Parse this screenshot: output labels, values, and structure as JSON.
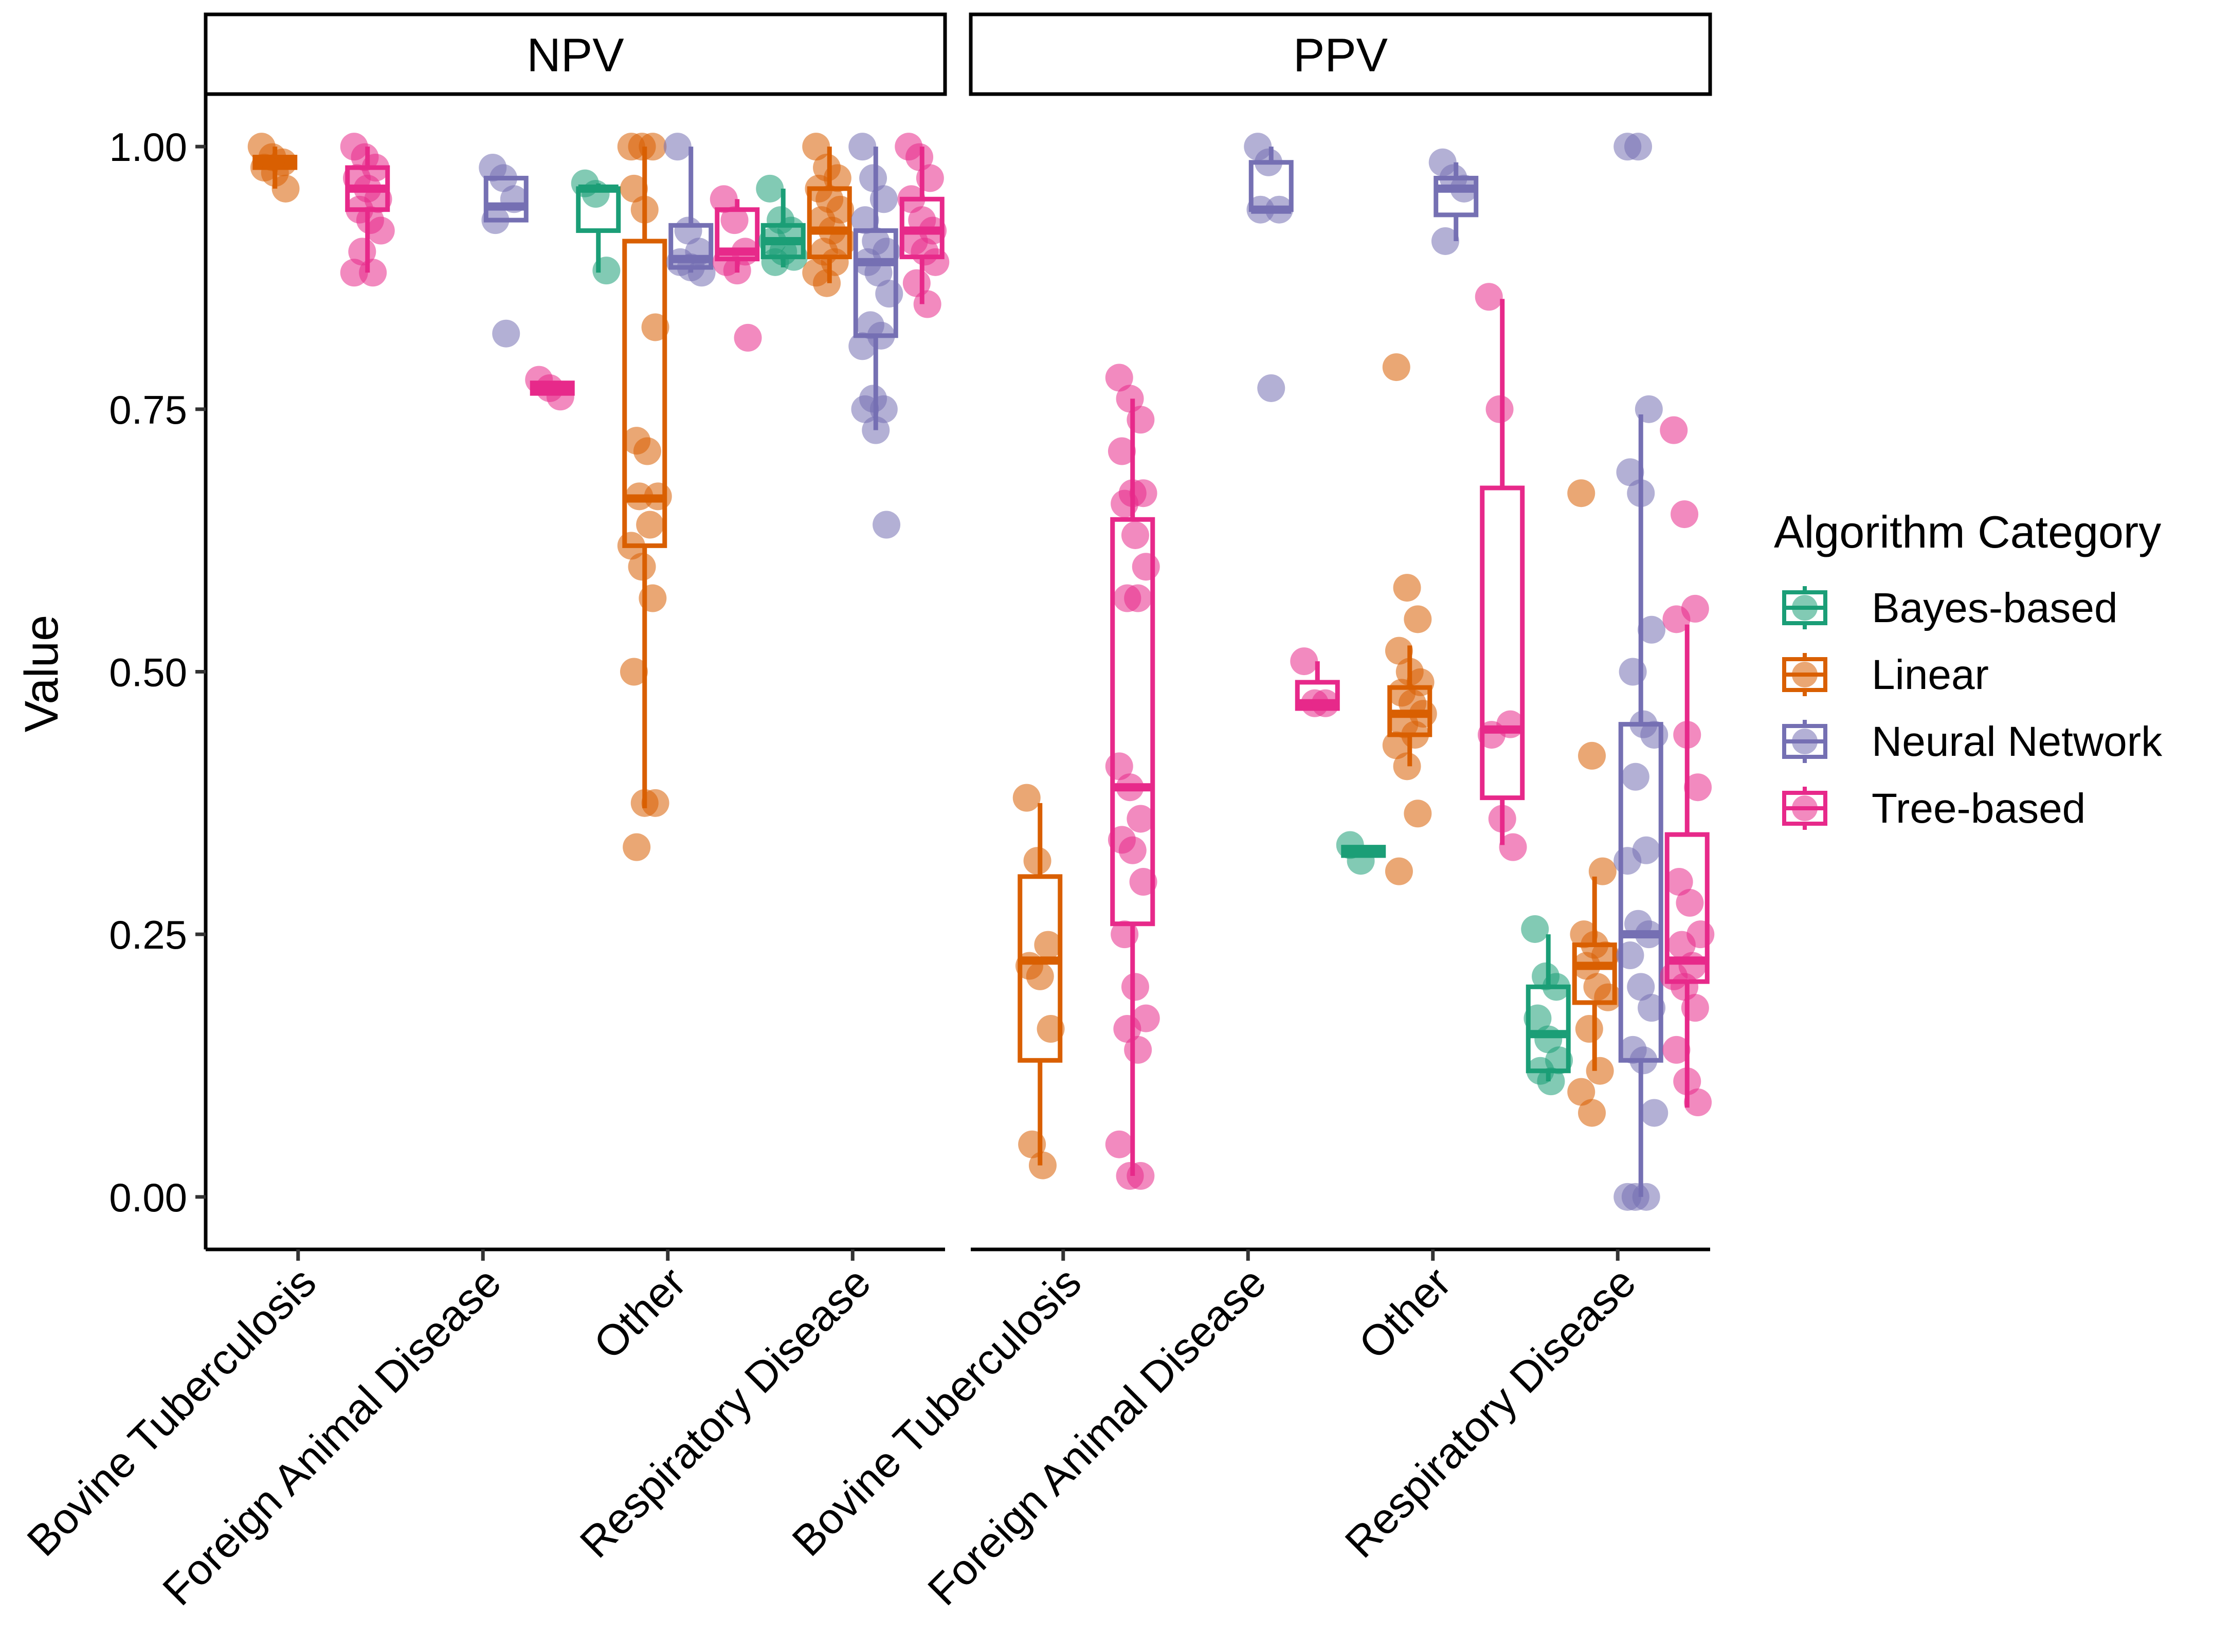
{
  "chart_data": {
    "type": "boxplot",
    "ylabel": "Value",
    "ylim": [
      -0.05,
      1.05
    ],
    "y_ticks": [
      0.0,
      0.25,
      0.5,
      0.75,
      1.0
    ],
    "y_tick_labels": [
      "0.00",
      "0.25",
      "0.50",
      "0.75",
      "1.00"
    ],
    "grid": false,
    "categories": [
      "Bovine Tuberculosis",
      "Foreign Animal Disease",
      "Other",
      "Respiratory Disease"
    ],
    "legend": {
      "title": "Algorithm Category",
      "position": "right",
      "entries": [
        {
          "name": "Bayes-based",
          "color": "#1B9E77"
        },
        {
          "name": "Linear",
          "color": "#D95F02"
        },
        {
          "name": "Neural Network",
          "color": "#7570B3"
        },
        {
          "name": "Tree-based",
          "color": "#E7298A"
        }
      ]
    },
    "panels": [
      {
        "name": "NPV",
        "groups": [
          {
            "category": "Bovine Tuberculosis",
            "series": "Linear",
            "q1": 0.98,
            "median": 0.985,
            "q3": 0.99,
            "wmin": 0.96,
            "wmax": 1.0,
            "points": [
              1.0,
              0.99,
              0.985,
              0.98,
              0.975,
              0.96
            ]
          },
          {
            "category": "Bovine Tuberculosis",
            "series": "Tree-based",
            "q1": 0.94,
            "median": 0.96,
            "q3": 0.98,
            "wmin": 0.88,
            "wmax": 1.0,
            "points": [
              1.0,
              0.99,
              0.98,
              0.97,
              0.96,
              0.95,
              0.94,
              0.93,
              0.92,
              0.9,
              0.88,
              0.88
            ]
          },
          {
            "category": "Foreign Animal Disease",
            "series": "Neural Network",
            "q1": 0.93,
            "median": 0.943,
            "q3": 0.97,
            "wmin": 0.93,
            "wmax": 0.97,
            "points": [
              0.98,
              0.97,
              0.95,
              0.93,
              0.822
            ]
          },
          {
            "category": "Foreign Animal Disease",
            "series": "Tree-based",
            "q1": 0.765,
            "median": 0.77,
            "q3": 0.775,
            "wmin": 0.765,
            "wmax": 0.775,
            "points": [
              0.778,
              0.77,
              0.762
            ]
          },
          {
            "category": "Other",
            "series": "Bayes-based",
            "q1": 0.92,
            "median": 0.96,
            "q3": 0.96,
            "wmin": 0.88,
            "wmax": 0.965,
            "points": [
              0.965,
              0.955,
              0.882
            ]
          },
          {
            "category": "Other",
            "series": "Linear",
            "q1": 0.62,
            "median": 0.665,
            "q3": 0.91,
            "wmin": 0.37,
            "wmax": 1.0,
            "points": [
              1.0,
              1.0,
              1.0,
              0.96,
              0.94,
              0.828,
              0.72,
              0.71,
              0.667,
              0.667,
              0.64,
              0.62,
              0.6,
              0.57,
              0.5,
              0.375,
              0.375,
              0.333
            ]
          },
          {
            "category": "Other",
            "series": "Neural Network",
            "q1": 0.885,
            "median": 0.893,
            "q3": 0.925,
            "wmin": 0.88,
            "wmax": 1.0,
            "points": [
              1.0,
              0.92,
              0.9,
              0.89,
              0.885,
              0.88
            ]
          },
          {
            "category": "Other",
            "series": "Tree-based",
            "q1": 0.893,
            "median": 0.9,
            "q3": 0.94,
            "wmin": 0.88,
            "wmax": 0.95,
            "points": [
              0.95,
              0.93,
              0.9,
              0.89,
              0.882,
              0.818
            ]
          },
          {
            "category": "Respiratory Disease",
            "series": "Bayes-based",
            "q1": 0.895,
            "median": 0.91,
            "q3": 0.925,
            "wmin": 0.885,
            "wmax": 0.96,
            "points": [
              0.96,
              0.93,
              0.92,
              0.91,
              0.9,
              0.895,
              0.89
            ]
          },
          {
            "category": "Respiratory Disease",
            "series": "Linear",
            "q1": 0.895,
            "median": 0.92,
            "q3": 0.96,
            "wmin": 0.87,
            "wmax": 1.0,
            "points": [
              1.0,
              0.98,
              0.97,
              0.96,
              0.95,
              0.94,
              0.93,
              0.92,
              0.91,
              0.9,
              0.89,
              0.88,
              0.87
            ]
          },
          {
            "category": "Respiratory Disease",
            "series": "Neural Network",
            "q1": 0.82,
            "median": 0.89,
            "q3": 0.92,
            "wmin": 0.73,
            "wmax": 1.0,
            "points": [
              1.0,
              0.97,
              0.95,
              0.93,
              0.91,
              0.9,
              0.89,
              0.88,
              0.86,
              0.83,
              0.82,
              0.81,
              0.76,
              0.75,
              0.75,
              0.73,
              0.64
            ]
          },
          {
            "category": "Respiratory Disease",
            "series": "Tree-based",
            "q1": 0.895,
            "median": 0.92,
            "q3": 0.95,
            "wmin": 0.85,
            "wmax": 1.0,
            "points": [
              1.0,
              0.99,
              0.97,
              0.95,
              0.93,
              0.92,
              0.91,
              0.9,
              0.89,
              0.87,
              0.85
            ]
          }
        ]
      },
      {
        "name": "PPV",
        "groups": [
          {
            "category": "Bovine Tuberculosis",
            "series": "Linear",
            "q1": 0.13,
            "median": 0.225,
            "q3": 0.305,
            "wmin": 0.03,
            "wmax": 0.375,
            "points": [
              0.38,
              0.32,
              0.24,
              0.22,
              0.21,
              0.16,
              0.05,
              0.03
            ]
          },
          {
            "category": "Bovine Tuberculosis",
            "series": "Tree-based",
            "q1": 0.26,
            "median": 0.39,
            "q3": 0.645,
            "wmin": 0.02,
            "wmax": 0.76,
            "points": [
              0.78,
              0.76,
              0.74,
              0.71,
              0.67,
              0.67,
              0.66,
              0.63,
              0.6,
              0.57,
              0.57,
              0.41,
              0.39,
              0.36,
              0.34,
              0.33,
              0.3,
              0.25,
              0.2,
              0.17,
              0.16,
              0.14,
              0.05,
              0.02,
              0.02
            ]
          },
          {
            "category": "Foreign Animal Disease",
            "series": "Neural Network",
            "q1": 0.94,
            "median": 0.94,
            "q3": 0.985,
            "wmin": 0.94,
            "wmax": 1.0,
            "points": [
              1.0,
              0.985,
              0.94,
              0.94,
              0.77
            ]
          },
          {
            "category": "Foreign Animal Disease",
            "series": "Tree-based",
            "q1": 0.465,
            "median": 0.47,
            "q3": 0.49,
            "wmin": 0.465,
            "wmax": 0.51,
            "points": [
              0.51,
              0.47,
              0.47
            ]
          },
          {
            "category": "Other",
            "series": "Bayes-based",
            "q1": 0.325,
            "median": 0.33,
            "q3": 0.333,
            "wmin": 0.325,
            "wmax": 0.333,
            "points": [
              0.335,
              0.32
            ]
          },
          {
            "category": "Other",
            "series": "Linear",
            "q1": 0.44,
            "median": 0.46,
            "q3": 0.485,
            "wmin": 0.41,
            "wmax": 0.525,
            "points": [
              0.79,
              0.58,
              0.55,
              0.52,
              0.5,
              0.49,
              0.48,
              0.47,
              0.46,
              0.45,
              0.44,
              0.43,
              0.41,
              0.365,
              0.31
            ]
          },
          {
            "category": "Other",
            "series": "Neural Network",
            "q1": 0.935,
            "median": 0.96,
            "q3": 0.97,
            "wmin": 0.91,
            "wmax": 0.985,
            "points": [
              0.985,
              0.97,
              0.96,
              0.91
            ]
          },
          {
            "category": "Other",
            "series": "Tree-based",
            "q1": 0.38,
            "median": 0.445,
            "q3": 0.675,
            "wmin": 0.335,
            "wmax": 0.855,
            "points": [
              0.857,
              0.75,
              0.45,
              0.44,
              0.36,
              0.333
            ]
          },
          {
            "category": "Respiratory Disease",
            "series": "Bayes-based",
            "q1": 0.12,
            "median": 0.155,
            "q3": 0.2,
            "wmin": 0.11,
            "wmax": 0.25,
            "points": [
              0.255,
              0.21,
              0.2,
              0.17,
              0.15,
              0.13,
              0.12,
              0.11
            ]
          },
          {
            "category": "Respiratory Disease",
            "series": "Linear",
            "q1": 0.185,
            "median": 0.22,
            "q3": 0.24,
            "wmin": 0.12,
            "wmax": 0.305,
            "points": [
              0.67,
              0.42,
              0.31,
              0.25,
              0.24,
              0.23,
              0.22,
              0.2,
              0.19,
              0.16,
              0.12,
              0.1,
              0.08
            ]
          },
          {
            "category": "Respiratory Disease",
            "series": "Neural Network",
            "q1": 0.13,
            "median": 0.25,
            "q3": 0.45,
            "wmin": 0.0,
            "wmax": 0.745,
            "points": [
              1.0,
              1.0,
              0.75,
              0.69,
              0.67,
              0.54,
              0.5,
              0.45,
              0.44,
              0.4,
              0.33,
              0.32,
              0.26,
              0.25,
              0.23,
              0.2,
              0.18,
              0.14,
              0.13,
              0.08,
              0.0,
              0.0,
              0.0
            ]
          },
          {
            "category": "Respiratory Disease",
            "series": "Tree-based",
            "q1": 0.205,
            "median": 0.225,
            "q3": 0.345,
            "wmin": 0.085,
            "wmax": 0.545,
            "points": [
              0.73,
              0.65,
              0.56,
              0.55,
              0.44,
              0.39,
              0.3,
              0.28,
              0.25,
              0.24,
              0.22,
              0.21,
              0.2,
              0.18,
              0.14,
              0.11,
              0.09
            ]
          }
        ]
      }
    ]
  }
}
